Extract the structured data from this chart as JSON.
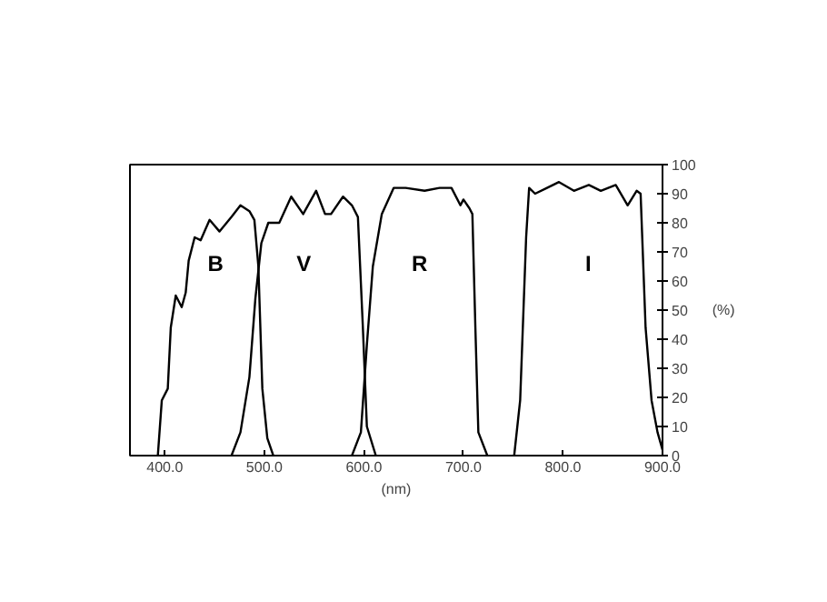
{
  "chart_data": {
    "type": "line",
    "xlabel": "(nm)",
    "ylabel": "(%)",
    "xlim": [
      365,
      900
    ],
    "ylim": [
      0,
      100
    ],
    "xticks": [
      {
        "value": 400,
        "label": "400.0"
      },
      {
        "value": 500,
        "label": "500.0"
      },
      {
        "value": 600,
        "label": "600.0"
      },
      {
        "value": 700,
        "label": "700.0"
      },
      {
        "value": 800,
        "label": "800.0"
      },
      {
        "value": 900,
        "label": "900.0"
      }
    ],
    "yticks": [
      0,
      10,
      20,
      30,
      40,
      50,
      60,
      70,
      80,
      90,
      100
    ],
    "grid": false,
    "marker": "none",
    "line_style": "solid",
    "series": [
      {
        "name": "B",
        "color": "#000000",
        "x": [
          393,
          397,
          403,
          406,
          411,
          417,
          421,
          424,
          430,
          436,
          445,
          455,
          467,
          476,
          485,
          490,
          494,
          498,
          503,
          509
        ],
        "values": [
          0,
          19,
          23,
          44,
          55,
          51,
          56,
          67,
          75,
          74,
          81,
          77,
          82,
          86,
          84,
          81,
          65,
          23,
          6,
          0
        ]
      },
      {
        "name": "V",
        "color": "#000000",
        "x": [
          467,
          476,
          485,
          491,
          497,
          504,
          515,
          527,
          539,
          552,
          561,
          567,
          579,
          588,
          594,
          599,
          603,
          612
        ],
        "values": [
          0,
          8,
          27,
          54,
          73,
          80,
          80,
          89,
          83,
          91,
          83,
          83,
          89,
          86,
          82,
          44,
          10,
          0
        ]
      },
      {
        "name": "R",
        "color": "#000000",
        "x": [
          588,
          597,
          603,
          609,
          618,
          630,
          642,
          661,
          676,
          688,
          697,
          700,
          706,
          709,
          712,
          715,
          724
        ],
        "values": [
          0,
          8,
          38,
          65,
          83,
          92,
          92,
          91,
          92,
          92,
          86,
          88,
          85,
          83,
          44,
          8,
          0
        ]
      },
      {
        "name": "I",
        "color": "#000000",
        "x": [
          751,
          757,
          763,
          766,
          772,
          784,
          796,
          811,
          826,
          838,
          853,
          865,
          874,
          878,
          883,
          889,
          895,
          900
        ],
        "values": [
          0,
          19,
          75,
          92,
          90,
          92,
          94,
          91,
          93,
          91,
          93,
          86,
          91,
          90,
          44,
          19,
          8,
          2
        ]
      }
    ]
  }
}
